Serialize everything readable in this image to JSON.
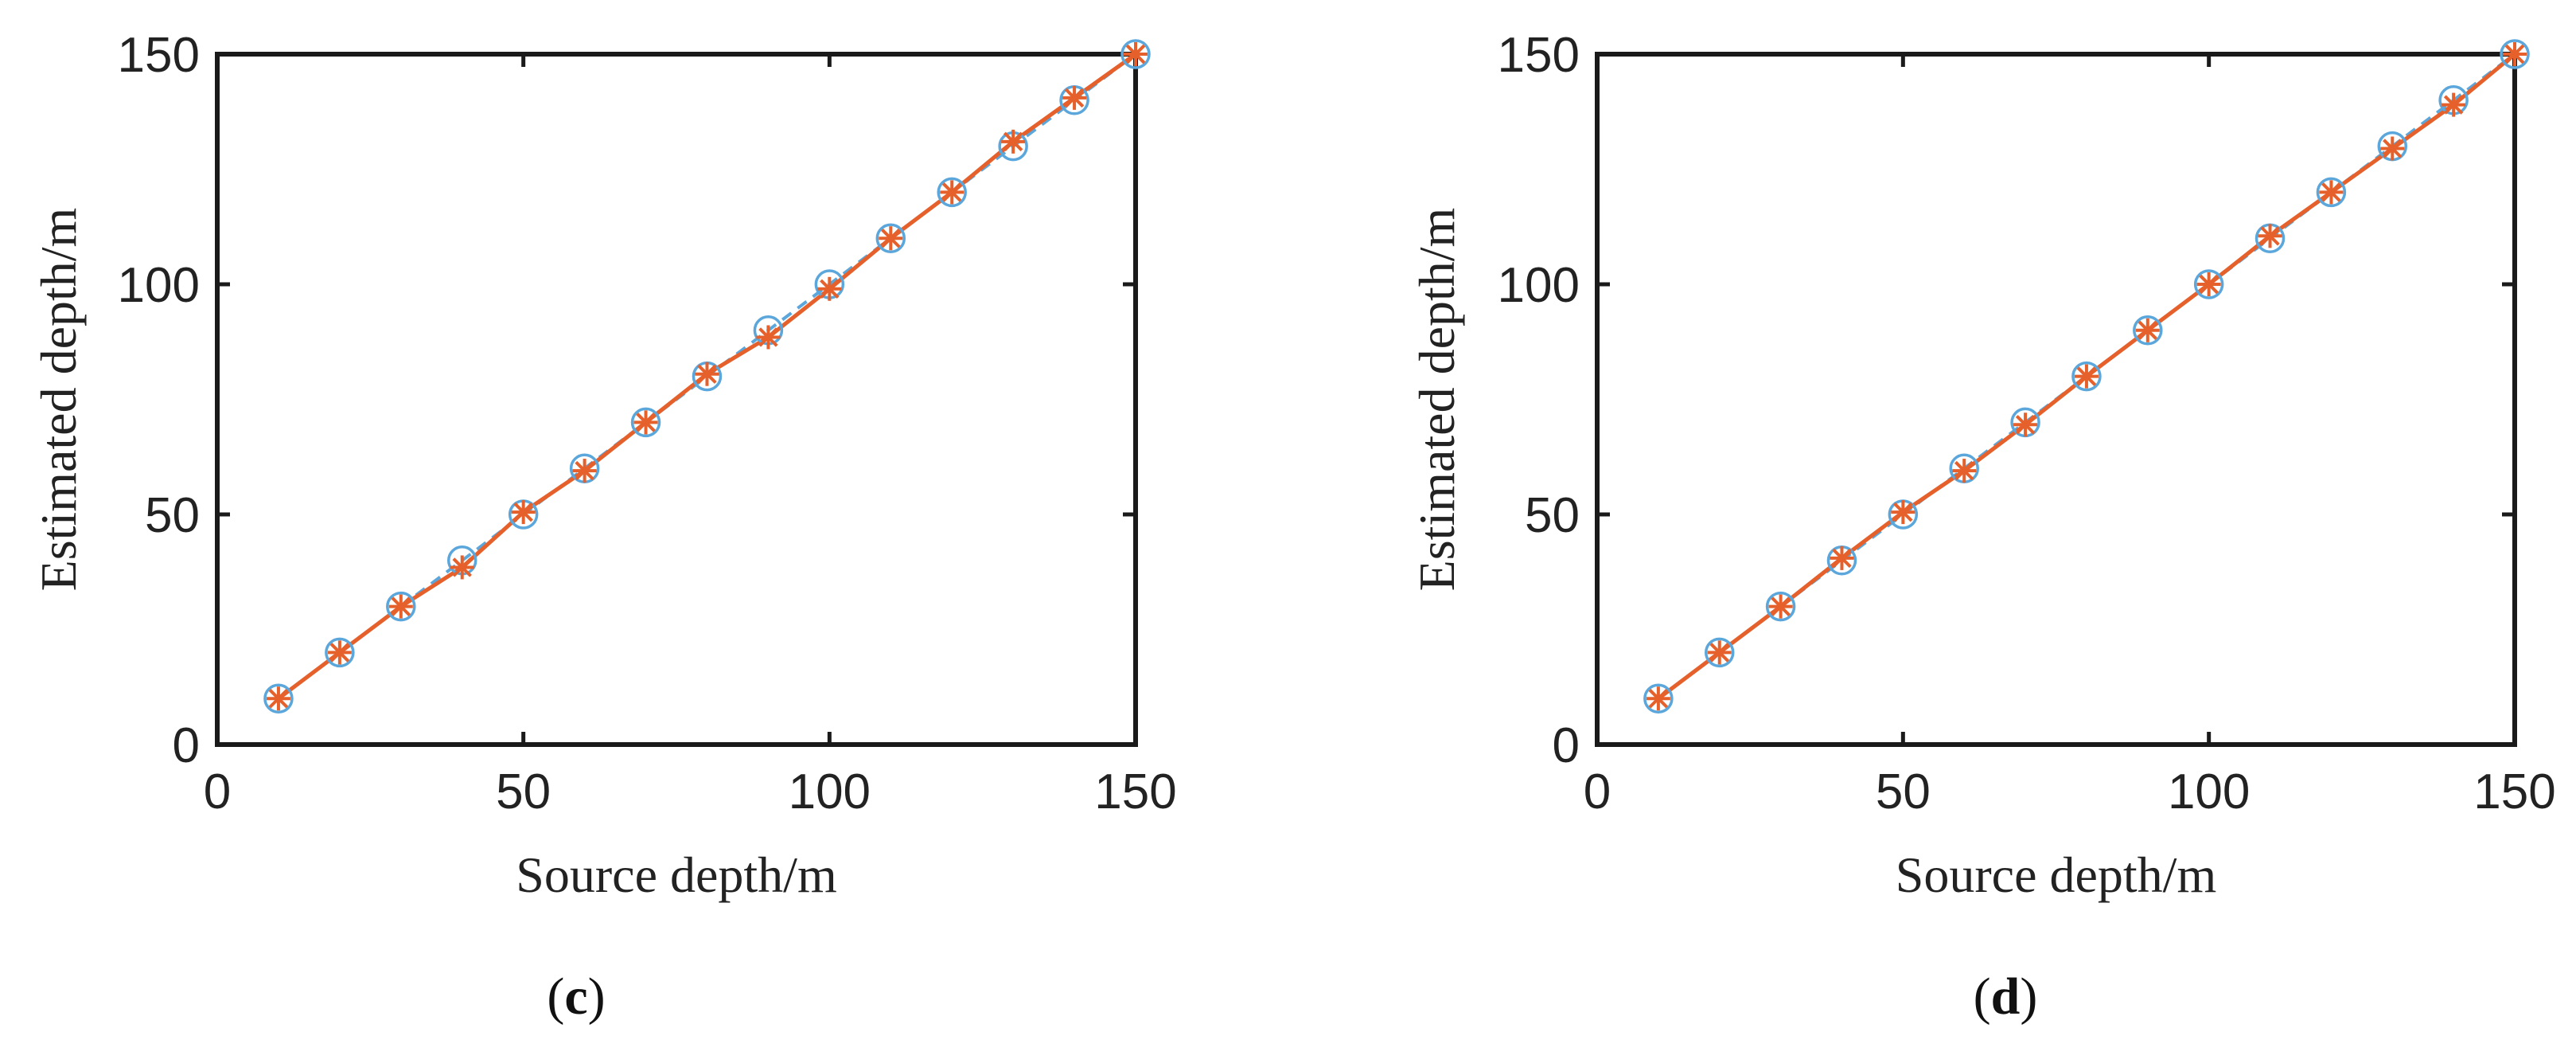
{
  "chart_data": [
    {
      "type": "line",
      "panel_label": "(c)",
      "panel_letter": "c",
      "xlabel": "Source depth/m",
      "ylabel": "Estimated depth/m",
      "xlim": [
        0,
        150
      ],
      "ylim": [
        0,
        150
      ],
      "xticks": [
        0,
        50,
        100,
        150
      ],
      "yticks": [
        0,
        50,
        100,
        150
      ],
      "grid": false,
      "x": [
        10,
        20,
        30,
        40,
        50,
        60,
        70,
        80,
        90,
        100,
        110,
        120,
        130,
        140,
        150
      ],
      "series": [
        {
          "marker": "circle",
          "line": "dashed",
          "color": "#5ba7dc",
          "values": [
            10,
            20,
            30,
            40,
            50,
            60,
            70,
            80,
            90,
            100,
            110,
            120,
            130,
            140,
            150
          ]
        },
        {
          "marker": "star",
          "line": "solid",
          "color": "#e5602b",
          "values": [
            10,
            20,
            30,
            38.5,
            50.5,
            59.5,
            70,
            80.5,
            88.5,
            99,
            110,
            120,
            131,
            140.5,
            150
          ]
        }
      ]
    },
    {
      "type": "line",
      "panel_label": "(d)",
      "panel_letter": "d",
      "xlabel": "Source depth/m",
      "ylabel": "Estimated depth/m",
      "xlim": [
        0,
        150
      ],
      "ylim": [
        0,
        150
      ],
      "xticks": [
        0,
        50,
        100,
        150
      ],
      "yticks": [
        0,
        50,
        100,
        150
      ],
      "grid": false,
      "x": [
        10,
        20,
        30,
        40,
        50,
        60,
        70,
        80,
        90,
        100,
        110,
        120,
        130,
        140,
        150
      ],
      "series": [
        {
          "marker": "circle",
          "line": "dashed",
          "color": "#5ba7dc",
          "values": [
            10,
            20,
            30,
            40,
            50,
            60,
            70,
            80,
            90,
            100,
            110,
            120,
            130,
            140,
            150
          ]
        },
        {
          "marker": "star",
          "line": "solid",
          "color": "#e5602b",
          "values": [
            10,
            20,
            30,
            40.5,
            50.5,
            59.5,
            69.5,
            80,
            90,
            100,
            110.5,
            120,
            129.5,
            139,
            150
          ]
        }
      ]
    }
  ]
}
